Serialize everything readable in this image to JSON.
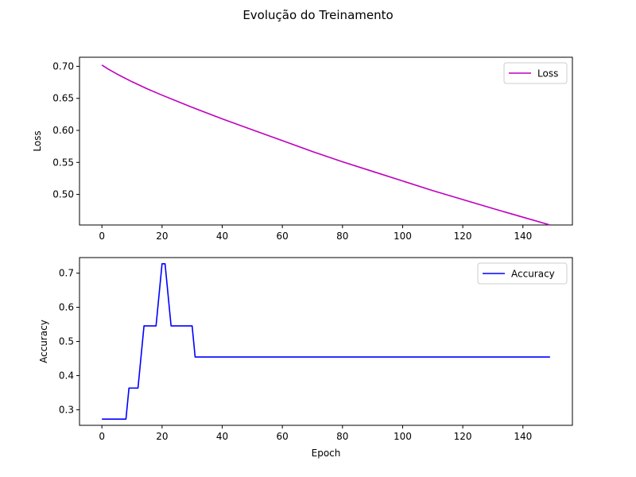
{
  "figure": {
    "title": "Evolução do Treinamento"
  },
  "chart_data": [
    {
      "type": "line",
      "xlabel": "",
      "ylabel": "Loss",
      "xlim": [
        -7.45,
        156.45
      ],
      "ylim": [
        0.4523,
        0.7142
      ],
      "xticks": [
        0,
        20,
        40,
        60,
        80,
        100,
        120,
        140
      ],
      "xtick_labels": [
        "0",
        "20",
        "40",
        "60",
        "80",
        "100",
        "120",
        "140"
      ],
      "yticks": [
        0.5,
        0.55,
        0.6,
        0.65,
        0.7
      ],
      "ytick_labels": [
        "0.50",
        "0.55",
        "0.60",
        "0.65",
        "0.70"
      ],
      "grid": false,
      "legend": "top-right",
      "series": [
        {
          "name": "Loss",
          "color": "#bf00bf",
          "x": [
            0,
            2,
            5,
            10,
            15,
            20,
            30,
            40,
            50,
            60,
            70,
            80,
            90,
            100,
            110,
            120,
            130,
            140,
            149
          ],
          "y": [
            0.702,
            0.696,
            0.688,
            0.676,
            0.665,
            0.655,
            0.636,
            0.618,
            0.601,
            0.584,
            0.567,
            0.551,
            0.536,
            0.521,
            0.506,
            0.492,
            0.478,
            0.4645,
            0.4523
          ]
        }
      ]
    },
    {
      "type": "line",
      "xlabel": "Epoch",
      "ylabel": "Accuracy",
      "xlim": [
        -7.45,
        156.45
      ],
      "ylim": [
        0.2545,
        0.7455
      ],
      "xticks": [
        0,
        20,
        40,
        60,
        80,
        100,
        120,
        140
      ],
      "xtick_labels": [
        "0",
        "20",
        "40",
        "60",
        "80",
        "100",
        "120",
        "140"
      ],
      "yticks": [
        0.3,
        0.4,
        0.5,
        0.6,
        0.7
      ],
      "ytick_labels": [
        "0.3",
        "0.4",
        "0.5",
        "0.6",
        "0.7"
      ],
      "grid": false,
      "legend": "top-right",
      "series": [
        {
          "name": "Accuracy",
          "color": "#0000ff",
          "x": [
            0,
            8,
            9,
            12,
            14,
            18,
            20,
            21,
            23,
            30,
            31,
            149
          ],
          "y": [
            0.2727,
            0.2727,
            0.3636,
            0.3636,
            0.5455,
            0.5455,
            0.7273,
            0.7273,
            0.5455,
            0.5455,
            0.4545,
            0.4545
          ]
        }
      ]
    }
  ]
}
